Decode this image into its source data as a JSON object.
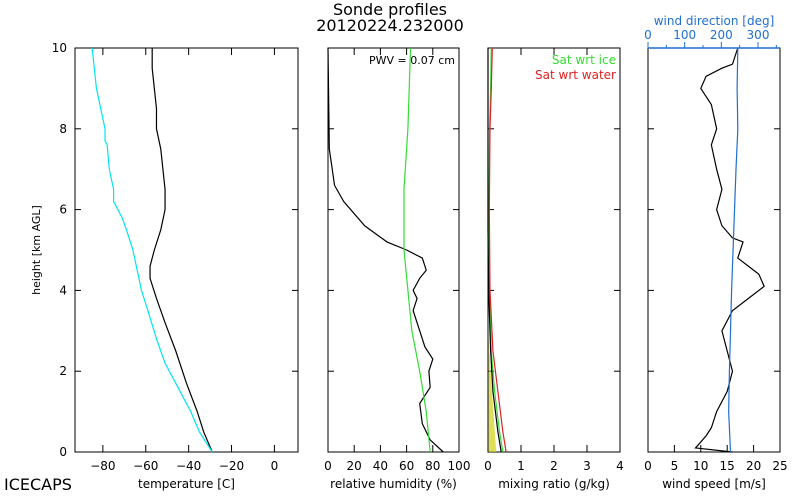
{
  "title_line1": "Sonde profiles",
  "title_line2": "20120224.232000",
  "watermark": "ICECAPS",
  "colors": {
    "axes": "#000000",
    "dewpoint": "#00e5ee",
    "sat_ice": "#33dd33",
    "sat_water": "#dd2222",
    "mix_shade": "#cccc00",
    "wind_direction": "#1f6fcf"
  },
  "chart_data": [
    {
      "type": "line",
      "panel": "temperature",
      "xlabel": "temperature [C]",
      "ylabel": "height [km AGL]",
      "xlim": [
        -93,
        11
      ],
      "ylim": [
        0,
        10
      ],
      "xticks": [
        -80,
        -60,
        -40,
        -20,
        0
      ],
      "yticks": [
        0,
        2,
        4,
        6,
        8,
        10
      ],
      "series": [
        {
          "color": "#000000",
          "points": [
            [
              -29,
              0
            ],
            [
              -33,
              0.5
            ],
            [
              -36,
              1
            ],
            [
              -41,
              1.7
            ],
            [
              -46,
              2.5
            ],
            [
              -51,
              3.2
            ],
            [
              -55,
              3.8
            ],
            [
              -58,
              4.3
            ],
            [
              -58,
              4.6
            ],
            [
              -56,
              5
            ],
            [
              -53,
              5.5
            ],
            [
              -51,
              6
            ],
            [
              -51,
              6.5
            ],
            [
              -53,
              7.5
            ],
            [
              -55,
              8
            ],
            [
              -55,
              8.5
            ],
            [
              -56,
              9
            ],
            [
              -57,
              9.5
            ],
            [
              -57,
              10
            ]
          ]
        },
        {
          "color": "#00e5ee",
          "points": [
            [
              -29,
              0
            ],
            [
              -35,
              0.5
            ],
            [
              -39,
              1
            ],
            [
              -46,
              1.7
            ],
            [
              -51,
              2.2
            ],
            [
              -55,
              2.8
            ],
            [
              -59,
              3.5
            ],
            [
              -62,
              4
            ],
            [
              -64,
              4.5
            ],
            [
              -66,
              5
            ],
            [
              -69,
              5.5
            ],
            [
              -71,
              5.8
            ],
            [
              -75,
              6.2
            ],
            [
              -75,
              6.5
            ],
            [
              -77,
              7
            ],
            [
              -78,
              7.6
            ],
            [
              -79,
              7.7
            ],
            [
              -79,
              8
            ],
            [
              -81,
              8.5
            ],
            [
              -83,
              9
            ],
            [
              -84,
              9.5
            ],
            [
              -85,
              10
            ]
          ]
        }
      ]
    },
    {
      "type": "line",
      "panel": "relative_humidity",
      "xlabel": "relative humidity (%)",
      "annotation": "PWV = 0.07 cm",
      "xlim": [
        0,
        100
      ],
      "ylim": [
        0,
        10
      ],
      "xticks": [
        0,
        20,
        40,
        60,
        80,
        100
      ],
      "series": [
        {
          "color": "#000000",
          "points": [
            [
              88,
              0
            ],
            [
              78,
              0.3
            ],
            [
              72,
              0.7
            ],
            [
              70,
              1.2
            ],
            [
              78,
              1.6
            ],
            [
              77,
              2
            ],
            [
              80,
              2.3
            ],
            [
              74,
              2.6
            ],
            [
              70,
              3
            ],
            [
              65,
              3.5
            ],
            [
              68,
              3.8
            ],
            [
              65,
              4
            ],
            [
              70,
              4.3
            ],
            [
              75,
              4.5
            ],
            [
              72,
              4.8
            ],
            [
              60,
              5
            ],
            [
              45,
              5.2
            ],
            [
              28,
              5.6
            ],
            [
              12,
              6.2
            ],
            [
              5,
              6.6
            ],
            [
              1,
              7.5
            ],
            [
              0,
              10
            ]
          ]
        },
        {
          "color": "#33dd33",
          "points": [
            [
              78,
              0
            ],
            [
              75,
              1
            ],
            [
              70,
              2
            ],
            [
              64,
              3
            ],
            [
              58,
              5
            ],
            [
              58,
              6.5
            ],
            [
              61,
              8
            ],
            [
              62,
              9
            ],
            [
              63,
              10
            ]
          ]
        }
      ]
    },
    {
      "type": "line",
      "panel": "mixing_ratio",
      "xlabel": "mixing ratio (g/kg)",
      "xlim": [
        0,
        4
      ],
      "ylim": [
        0,
        10
      ],
      "xticks": [
        0,
        1,
        2,
        3,
        4
      ],
      "legend_position": "top-right",
      "series": [
        {
          "name": "Sat wrt ice",
          "color": "#33dd33",
          "points": [
            [
              0.45,
              0
            ],
            [
              0.35,
              0.5
            ],
            [
              0.2,
              1.5
            ],
            [
              0.1,
              2.5
            ],
            [
              0.04,
              4
            ],
            [
              0.03,
              6
            ],
            [
              0.05,
              8
            ],
            [
              0.08,
              9
            ],
            [
              0.1,
              10
            ]
          ]
        },
        {
          "name": "Sat wrt water",
          "color": "#dd2222",
          "points": [
            [
              0.55,
              0
            ],
            [
              0.45,
              0.5
            ],
            [
              0.3,
              1.5
            ],
            [
              0.15,
              2.5
            ],
            [
              0.06,
              4
            ],
            [
              0.04,
              6
            ],
            [
              0.06,
              8
            ],
            [
              0.1,
              9
            ],
            [
              0.13,
              10
            ]
          ]
        },
        {
          "color": "#000000",
          "points": [
            [
              0.4,
              0
            ],
            [
              0.3,
              0.5
            ],
            [
              0.15,
              1.5
            ],
            [
              0.08,
              2.5
            ],
            [
              0.02,
              4
            ],
            [
              0,
              5.5
            ],
            [
              0,
              10
            ]
          ]
        }
      ]
    },
    {
      "type": "line",
      "panel": "wind",
      "xlabel": "wind speed [m/s]",
      "x2label": "wind direction [deg]",
      "xlim": [
        0,
        25
      ],
      "x2lim": [
        0,
        360
      ],
      "ylim": [
        0,
        10
      ],
      "xticks": [
        0,
        5,
        10,
        15,
        20,
        25
      ],
      "x2ticks": [
        0,
        100,
        200,
        300
      ],
      "series": [
        {
          "color": "#000000",
          "points": [
            [
              16,
              0
            ],
            [
              9,
              0.1
            ],
            [
              11,
              0.4
            ],
            [
              12,
              0.6
            ],
            [
              13,
              1
            ],
            [
              15,
              1.5
            ],
            [
              16,
              2
            ],
            [
              15,
              2.5
            ],
            [
              14,
              3
            ],
            [
              16,
              3.5
            ],
            [
              19,
              3.8
            ],
            [
              22,
              4.1
            ],
            [
              21,
              4.4
            ],
            [
              19,
              4.6
            ],
            [
              17,
              4.8
            ],
            [
              18,
              5.2
            ],
            [
              16,
              5.3
            ],
            [
              14,
              5.6
            ],
            [
              13,
              6
            ],
            [
              14,
              6.5
            ],
            [
              13,
              7
            ],
            [
              12,
              7.6
            ],
            [
              13,
              8
            ],
            [
              12,
              8.6
            ],
            [
              10,
              9
            ],
            [
              11,
              9.3
            ],
            [
              14,
              9.5
            ],
            [
              16,
              9.6
            ],
            [
              17,
              10
            ]
          ]
        },
        {
          "color": "#1f6fcf",
          "points": [
            [
              225,
              0
            ],
            [
              220,
              1
            ],
            [
              222,
              2
            ],
            [
              225,
              3
            ],
            [
              228,
              4
            ],
            [
              232,
              5
            ],
            [
              236,
              6
            ],
            [
              240,
              7
            ],
            [
              245,
              8
            ],
            [
              243,
              9
            ],
            [
              245,
              10
            ]
          ]
        }
      ]
    }
  ]
}
